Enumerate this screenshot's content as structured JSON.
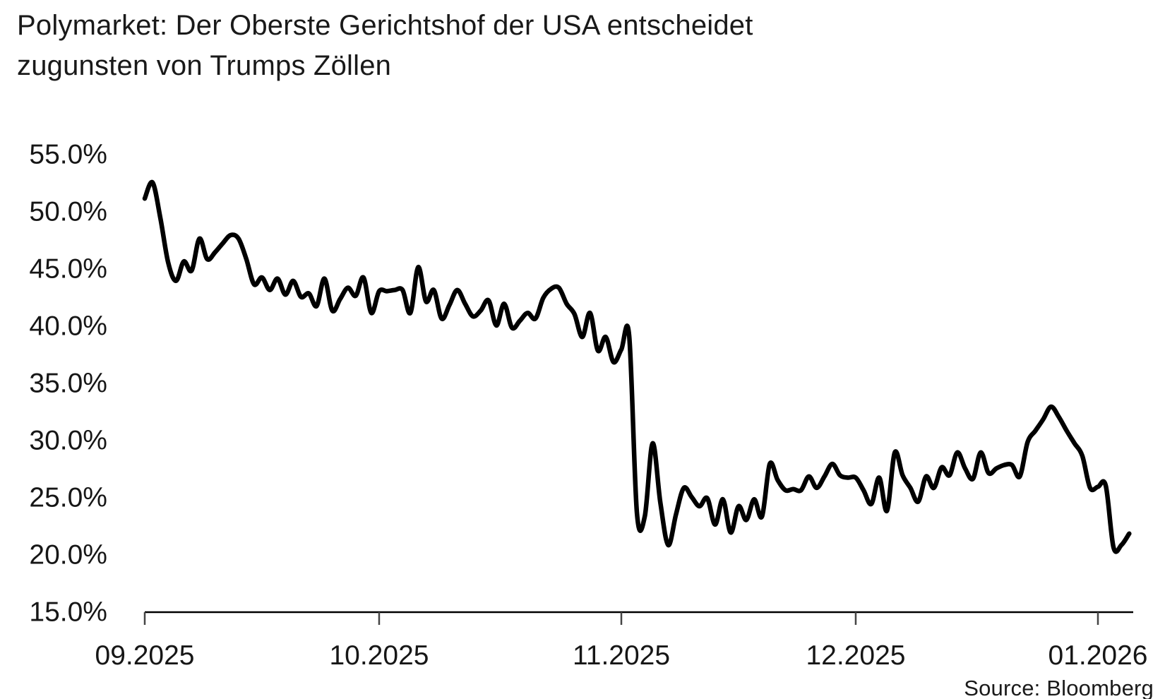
{
  "title": {
    "line1": "Polymarket: Der Oberste Gerichtshof der USA entscheidet",
    "line2": "zugunsten von Trumps Zöllen"
  },
  "source_label": "Source: Bloomberg",
  "colors": {
    "background": "#ffffff",
    "text": "#191919",
    "line": "#000000",
    "axis": "#000000",
    "tick": "#454545"
  },
  "chart_data": {
    "type": "line",
    "title": "Polymarket: Der Oberste Gerichtshof der USA entscheidet zugunsten von Trumps Zöllen",
    "xlabel": "",
    "ylabel": "",
    "ylim": [
      15,
      55
    ],
    "grid": false,
    "legend": null,
    "source": "Source: Bloomberg",
    "y_ticks": [
      {
        "value": 55,
        "label": "55.0%"
      },
      {
        "value": 50,
        "label": "50.0%"
      },
      {
        "value": 45,
        "label": "45.0%"
      },
      {
        "value": 40,
        "label": "40.0%"
      },
      {
        "value": 35,
        "label": "35.0%"
      },
      {
        "value": 30,
        "label": "30.0%"
      },
      {
        "value": 25,
        "label": "25.0%"
      },
      {
        "value": 20,
        "label": "20.0%"
      },
      {
        "value": 15,
        "label": "15.0%"
      }
    ],
    "x_ticks": [
      {
        "date": "2025-09-01",
        "label": "09.2025"
      },
      {
        "date": "2025-10-01",
        "label": "10.2025"
      },
      {
        "date": "2025-11-01",
        "label": "11.2025"
      },
      {
        "date": "2025-12-01",
        "label": "12.2025"
      },
      {
        "date": "2026-01-01",
        "label": "01.2026"
      }
    ],
    "series": [
      {
        "point_format": [
          "date",
          "probability_pct"
        ],
        "points": [
          [
            "2025-09-01",
            51.1
          ],
          [
            "2025-09-02",
            52.5
          ],
          [
            "2025-09-03",
            49.4
          ],
          [
            "2025-09-04",
            45.5
          ],
          [
            "2025-09-05",
            43.9
          ],
          [
            "2025-09-06",
            45.6
          ],
          [
            "2025-09-07",
            44.8
          ],
          [
            "2025-09-08",
            47.6
          ],
          [
            "2025-09-09",
            45.8
          ],
          [
            "2025-09-10",
            46.4
          ],
          [
            "2025-09-11",
            47.2
          ],
          [
            "2025-09-12",
            47.9
          ],
          [
            "2025-09-13",
            47.6
          ],
          [
            "2025-09-14",
            45.8
          ],
          [
            "2025-09-15",
            43.6
          ],
          [
            "2025-09-16",
            44.2
          ],
          [
            "2025-09-17",
            43.1
          ],
          [
            "2025-09-18",
            44.1
          ],
          [
            "2025-09-19",
            42.7
          ],
          [
            "2025-09-20",
            43.9
          ],
          [
            "2025-09-21",
            42.5
          ],
          [
            "2025-09-22",
            42.8
          ],
          [
            "2025-09-23",
            41.7
          ],
          [
            "2025-09-24",
            44.1
          ],
          [
            "2025-09-25",
            41.3
          ],
          [
            "2025-09-26",
            42.3
          ],
          [
            "2025-09-27",
            43.3
          ],
          [
            "2025-09-28",
            42.6
          ],
          [
            "2025-09-29",
            44.2
          ],
          [
            "2025-09-30",
            41.1
          ],
          [
            "2025-10-01",
            43.0
          ],
          [
            "2025-10-02",
            43.0
          ],
          [
            "2025-10-03",
            43.1
          ],
          [
            "2025-10-04",
            43.1
          ],
          [
            "2025-10-05",
            41.1
          ],
          [
            "2025-10-06",
            45.1
          ],
          [
            "2025-10-07",
            42.1
          ],
          [
            "2025-10-08",
            43.1
          ],
          [
            "2025-10-09",
            40.6
          ],
          [
            "2025-10-10",
            41.8
          ],
          [
            "2025-10-11",
            43.1
          ],
          [
            "2025-10-12",
            41.9
          ],
          [
            "2025-10-13",
            40.8
          ],
          [
            "2025-10-14",
            41.3
          ],
          [
            "2025-10-15",
            42.2
          ],
          [
            "2025-10-16",
            40.0
          ],
          [
            "2025-10-17",
            41.9
          ],
          [
            "2025-10-18",
            39.8
          ],
          [
            "2025-10-19",
            40.4
          ],
          [
            "2025-10-20",
            41.1
          ],
          [
            "2025-10-21",
            40.6
          ],
          [
            "2025-10-22",
            42.4
          ],
          [
            "2025-10-23",
            43.2
          ],
          [
            "2025-10-24",
            43.3
          ],
          [
            "2025-10-25",
            41.9
          ],
          [
            "2025-10-26",
            41.0
          ],
          [
            "2025-10-27",
            39.0
          ],
          [
            "2025-10-28",
            41.1
          ],
          [
            "2025-10-29",
            37.8
          ],
          [
            "2025-10-30",
            39.0
          ],
          [
            "2025-10-31",
            36.8
          ],
          [
            "2025-11-01",
            37.9
          ],
          [
            "2025-11-02",
            39.1
          ],
          [
            "2025-11-03",
            23.6
          ],
          [
            "2025-11-04",
            23.3
          ],
          [
            "2025-11-05",
            29.7
          ],
          [
            "2025-11-06",
            24.5
          ],
          [
            "2025-11-07",
            20.8
          ],
          [
            "2025-11-08",
            23.5
          ],
          [
            "2025-11-09",
            25.8
          ],
          [
            "2025-11-10",
            25.0
          ],
          [
            "2025-11-11",
            24.2
          ],
          [
            "2025-11-12",
            24.9
          ],
          [
            "2025-11-13",
            22.6
          ],
          [
            "2025-11-14",
            24.8
          ],
          [
            "2025-11-15",
            21.9
          ],
          [
            "2025-11-16",
            24.2
          ],
          [
            "2025-11-17",
            23.0
          ],
          [
            "2025-11-18",
            24.8
          ],
          [
            "2025-11-19",
            23.3
          ],
          [
            "2025-11-20",
            27.9
          ],
          [
            "2025-11-21",
            26.5
          ],
          [
            "2025-11-22",
            25.6
          ],
          [
            "2025-11-23",
            25.7
          ],
          [
            "2025-11-24",
            25.6
          ],
          [
            "2025-11-25",
            26.8
          ],
          [
            "2025-11-26",
            25.8
          ],
          [
            "2025-11-27",
            26.8
          ],
          [
            "2025-11-28",
            27.9
          ],
          [
            "2025-11-29",
            26.9
          ],
          [
            "2025-11-30",
            26.7
          ],
          [
            "2025-12-01",
            26.7
          ],
          [
            "2025-12-02",
            25.6
          ],
          [
            "2025-12-03",
            24.4
          ],
          [
            "2025-12-04",
            26.7
          ],
          [
            "2025-12-05",
            23.8
          ],
          [
            "2025-12-06",
            28.9
          ],
          [
            "2025-12-07",
            26.9
          ],
          [
            "2025-12-08",
            25.8
          ],
          [
            "2025-12-09",
            24.6
          ],
          [
            "2025-12-10",
            26.8
          ],
          [
            "2025-12-11",
            25.8
          ],
          [
            "2025-12-12",
            27.6
          ],
          [
            "2025-12-13",
            26.9
          ],
          [
            "2025-12-14",
            28.9
          ],
          [
            "2025-12-15",
            27.5
          ],
          [
            "2025-12-16",
            26.6
          ],
          [
            "2025-12-17",
            28.9
          ],
          [
            "2025-12-18",
            27.1
          ],
          [
            "2025-12-19",
            27.5
          ],
          [
            "2025-12-20",
            27.8
          ],
          [
            "2025-12-21",
            27.8
          ],
          [
            "2025-12-22",
            26.8
          ],
          [
            "2025-12-23",
            29.8
          ],
          [
            "2025-12-24",
            30.8
          ],
          [
            "2025-12-25",
            31.8
          ],
          [
            "2025-12-26",
            32.9
          ],
          [
            "2025-12-27",
            32.0
          ],
          [
            "2025-12-28",
            30.8
          ],
          [
            "2025-12-29",
            29.7
          ],
          [
            "2025-12-30",
            28.6
          ],
          [
            "2025-12-31",
            25.8
          ],
          [
            "2026-01-01",
            25.9
          ],
          [
            "2026-01-02",
            26.0
          ],
          [
            "2026-01-03",
            20.6
          ],
          [
            "2026-01-04",
            20.8
          ],
          [
            "2026-01-05",
            21.8
          ]
        ]
      }
    ]
  }
}
